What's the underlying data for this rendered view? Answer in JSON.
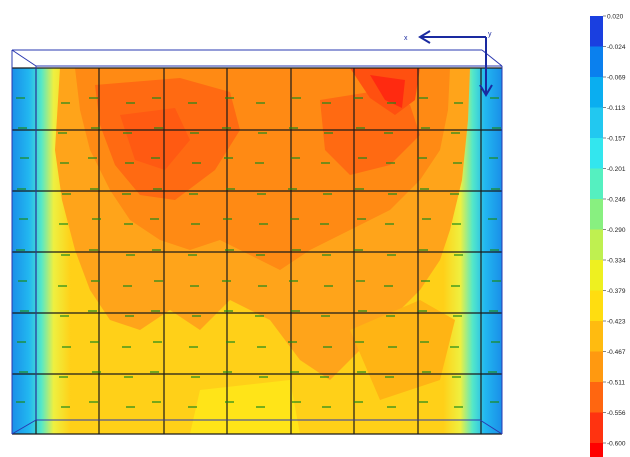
{
  "axis_marker": {
    "x_label": "x",
    "y_label": "y"
  },
  "colorbar": {
    "labels": [
      "0.020",
      "-0.024",
      "-0.069",
      "-0.113",
      "-0.157",
      "-0.201",
      "-0.246",
      "-0.290",
      "-0.334",
      "-0.379",
      "-0.423",
      "-0.467",
      "-0.511",
      "-0.556",
      "-0.600"
    ],
    "colors": [
      "#1a3fe0",
      "#0a80ee",
      "#0aaef0",
      "#22c8f0",
      "#33e6ee",
      "#55f0c0",
      "#88f080",
      "#bff050",
      "#eef020",
      "#ffdd10",
      "#ffbb10",
      "#ff9910",
      "#ff6610",
      "#ff3310",
      "#ff0000"
    ]
  },
  "colors": {
    "frame_blue": "#1a2aa0",
    "grid_black": "#1a1a1a",
    "marker_green": "#1a8a1a"
  }
}
